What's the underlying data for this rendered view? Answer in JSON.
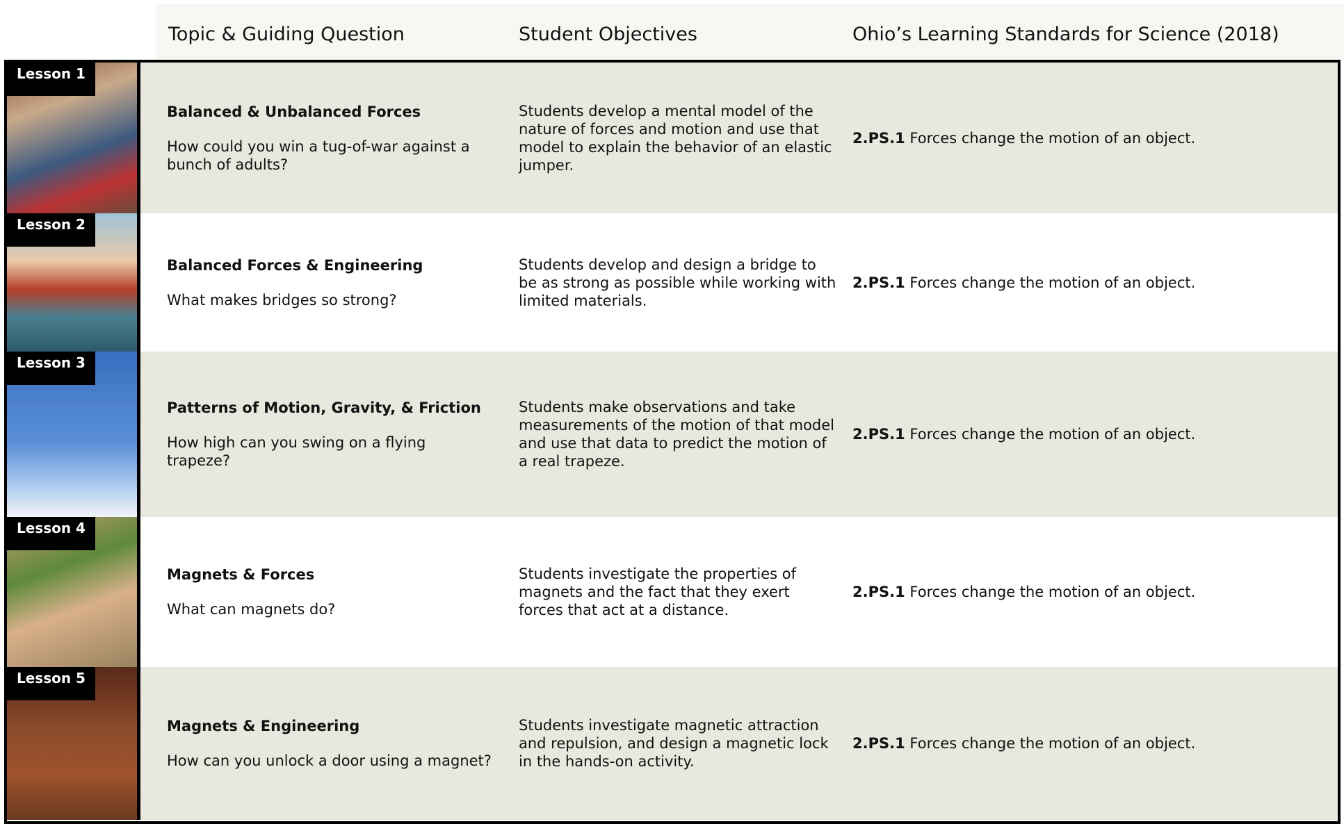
{
  "table": {
    "headers": [
      "Topic & Guiding Question",
      "Student Objectives",
      "Ohio’s Learning Standards for Science (2018)"
    ],
    "rows": [
      {
        "lesson": "Lesson 1",
        "topic": "Balanced & Unbalanced Forces",
        "question": "How could you win a tug-of-war against a bunch of adults?",
        "objective": "Students develop a mental model of the nature of forces and motion and use that model to explain the behavior of an elastic jumper.",
        "standard_code": "2.PS.1",
        "standard_text": "Forces change the motion of an object."
      },
      {
        "lesson": "Lesson 2",
        "topic": "Balanced Forces & Engineering",
        "question": "What makes bridges so strong?",
        "objective": "Students develop and design a bridge to be as strong as possible while working with limited materials.",
        "standard_code": "2.PS.1",
        "standard_text": "Forces change the motion of an object."
      },
      {
        "lesson": "Lesson 3",
        "topic": "Patterns of Motion, Gravity, & Friction",
        "question": "How high can you swing on a flying trapeze?",
        "objective": "Students make observations and take measurements of the motion of that model and use that data to predict the motion of a real trapeze.",
        "standard_code": "2.PS.1",
        "standard_text": "Forces change the motion of an object."
      },
      {
        "lesson": "Lesson 4",
        "topic": "Magnets & Forces",
        "question": "What can magnets do?",
        "objective": "Students investigate the properties of magnets and the fact that they exert forces that act at a distance.",
        "standard_code": "2.PS.1",
        "standard_text": "Forces change the motion of an object."
      },
      {
        "lesson": "Lesson 5",
        "topic": "Magnets & Engineering",
        "question": "How can you unlock a door using a magnet?",
        "objective": "Students investigate magnetic attraction and repulsion, and design a magnetic lock in the hands-on activity.",
        "standard_code": "2.PS.1",
        "standard_text": "Forces change the motion of an object."
      }
    ]
  }
}
